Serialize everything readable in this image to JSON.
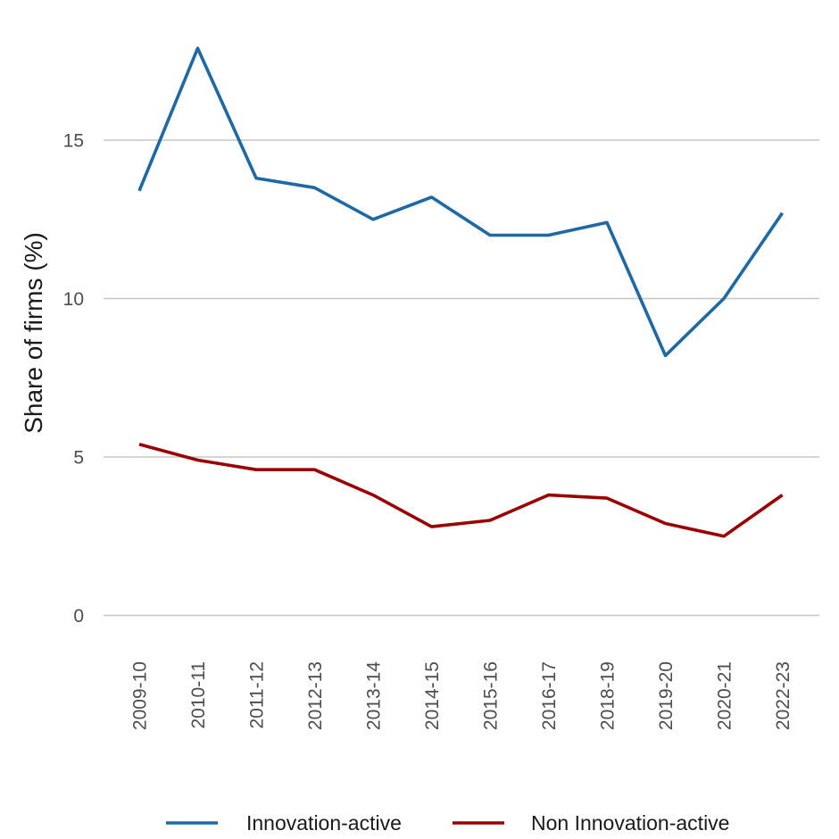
{
  "chart_data": {
    "type": "line",
    "title": "",
    "xlabel": "",
    "ylabel": "Share of firms (%)",
    "ylim": [
      0,
      18
    ],
    "yticks": [
      0,
      5,
      10,
      15
    ],
    "grid": true,
    "legend_position": "bottom",
    "categories": [
      "2009-10",
      "2010-11",
      "2011-12",
      "2012-13",
      "2013-14",
      "2014-15",
      "2015-16",
      "2016-17",
      "2018-19",
      "2019-20",
      "2020-21",
      "2022-23"
    ],
    "series": [
      {
        "name": "Innovation-active",
        "color": "#1f68a6",
        "values": [
          13.4,
          17.9,
          13.8,
          13.5,
          12.5,
          13.2,
          12.0,
          12.0,
          12.4,
          8.2,
          10.0,
          12.7
        ]
      },
      {
        "name": "Non Innovation-active",
        "color": "#990000",
        "values": [
          5.4,
          4.9,
          4.6,
          4.6,
          3.8,
          2.8,
          3.0,
          3.8,
          3.7,
          2.9,
          2.5,
          3.8
        ]
      }
    ]
  }
}
